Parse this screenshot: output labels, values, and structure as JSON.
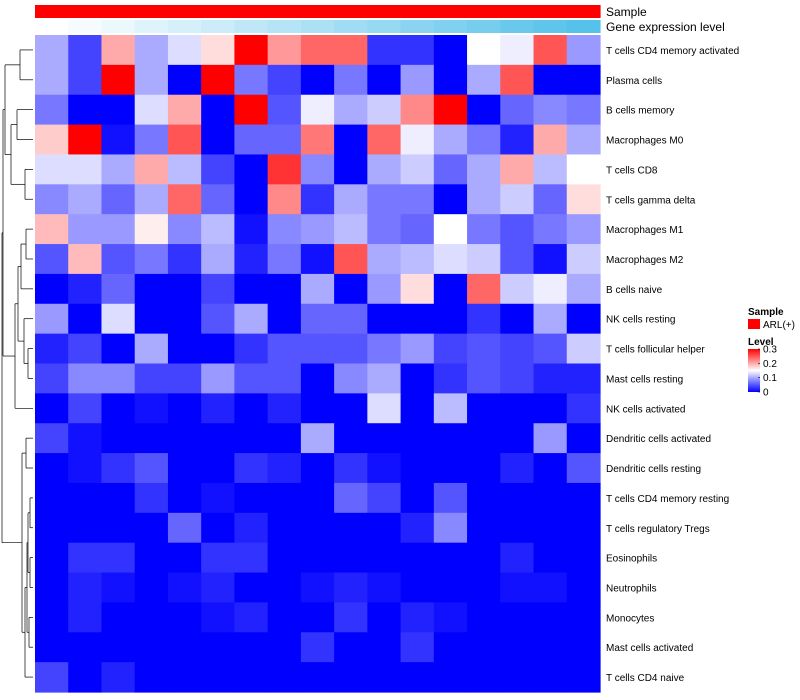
{
  "chart_data": {
    "type": "heatmap",
    "title": "",
    "annotation_tracks": [
      {
        "name": "Sample",
        "type": "categorical",
        "values": [
          "ARL(+)",
          "ARL(+)",
          "ARL(+)",
          "ARL(+)",
          "ARL(+)",
          "ARL(+)",
          "ARL(+)",
          "ARL(+)",
          "ARL(+)",
          "ARL(+)",
          "ARL(+)",
          "ARL(+)",
          "ARL(+)",
          "ARL(+)",
          "ARL(+)",
          "ARL(+)",
          "ARL(+)"
        ]
      },
      {
        "name": "Gene expression level",
        "type": "continuous",
        "values": [
          0.0,
          0.06,
          0.12,
          0.19,
          0.25,
          0.31,
          0.38,
          0.44,
          0.5,
          0.56,
          0.62,
          0.69,
          0.75,
          0.81,
          0.88,
          0.94,
          1.0
        ],
        "color_low": "#ffffff",
        "color_high": "#56c1ea"
      }
    ],
    "rows": [
      "T cells CD4 memory activated",
      "Plasma cells",
      "B cells memory",
      "Macrophages M0",
      "T cells CD8",
      "T cells gamma delta",
      "Macrophages M1",
      "Macrophages M2",
      "B cells naive",
      "NK cells resting",
      "T cells follicular helper",
      "Mast cells resting",
      "NK cells activated",
      "Dendritic cells activated",
      "Dendritic cells resting",
      "T cells CD4 memory resting",
      "T cells regulatory  Tregs",
      "Eosinophils",
      "Neutrophils",
      "Monocytes",
      "Mast cells activated",
      "T cells CD4 naive"
    ],
    "n_columns": 17,
    "values": [
      [
        0.1,
        0.04,
        0.2,
        0.1,
        0.13,
        0.17,
        0.3,
        0.21,
        0.24,
        0.24,
        0.03,
        0.03,
        0.0,
        0.15,
        0.14,
        0.25,
        0.09
      ],
      [
        0.1,
        0.04,
        0.3,
        0.1,
        0.0,
        0.3,
        0.07,
        0.04,
        0.0,
        0.07,
        0.0,
        0.09,
        0.0,
        0.1,
        0.25,
        0.0,
        0.0
      ],
      [
        0.07,
        0.0,
        0.0,
        0.13,
        0.2,
        0.0,
        0.3,
        0.05,
        0.14,
        0.1,
        0.12,
        0.22,
        0.3,
        0.0,
        0.06,
        0.08,
        0.07
      ],
      [
        0.18,
        0.3,
        0.01,
        0.07,
        0.25,
        0.0,
        0.06,
        0.06,
        0.23,
        0.0,
        0.24,
        0.14,
        0.1,
        0.07,
        0.02,
        0.2,
        0.1
      ],
      [
        0.13,
        0.13,
        0.1,
        0.2,
        0.11,
        0.04,
        0.0,
        0.27,
        0.08,
        0.0,
        0.1,
        0.12,
        0.06,
        0.1,
        0.2,
        0.11,
        0.15
      ],
      [
        0.08,
        0.1,
        0.06,
        0.1,
        0.24,
        0.06,
        0.0,
        0.22,
        0.03,
        0.1,
        0.07,
        0.07,
        0.0,
        0.1,
        0.12,
        0.06,
        0.17
      ],
      [
        0.19,
        0.09,
        0.09,
        0.16,
        0.08,
        0.11,
        0.01,
        0.08,
        0.09,
        0.11,
        0.07,
        0.06,
        0.15,
        0.07,
        0.05,
        0.07,
        0.09
      ],
      [
        0.05,
        0.19,
        0.05,
        0.07,
        0.03,
        0.1,
        0.02,
        0.07,
        0.01,
        0.25,
        0.1,
        0.11,
        0.13,
        0.12,
        0.05,
        0.01,
        0.12
      ],
      [
        0.0,
        0.02,
        0.06,
        0.0,
        0.0,
        0.04,
        0.0,
        0.0,
        0.1,
        0.0,
        0.09,
        0.17,
        0.0,
        0.24,
        0.12,
        0.14,
        0.1
      ],
      [
        0.09,
        0.0,
        0.13,
        0.0,
        0.0,
        0.05,
        0.1,
        0.0,
        0.06,
        0.06,
        0.0,
        0.0,
        0.0,
        0.03,
        0.0,
        0.1,
        0.0
      ],
      [
        0.02,
        0.04,
        0.0,
        0.1,
        0.0,
        0.0,
        0.03,
        0.05,
        0.05,
        0.05,
        0.07,
        0.09,
        0.04,
        0.05,
        0.04,
        0.05,
        0.12
      ],
      [
        0.04,
        0.08,
        0.08,
        0.04,
        0.04,
        0.09,
        0.05,
        0.05,
        0.0,
        0.08,
        0.1,
        0.0,
        0.03,
        0.05,
        0.04,
        0.02,
        0.02
      ],
      [
        0.0,
        0.04,
        0.0,
        0.01,
        0.0,
        0.02,
        0.0,
        0.02,
        0.0,
        0.0,
        0.13,
        0.0,
        0.11,
        0.0,
        0.0,
        0.0,
        0.03
      ],
      [
        0.04,
        0.01,
        0.0,
        0.0,
        0.0,
        0.0,
        0.0,
        0.0,
        0.1,
        0.0,
        0.0,
        0.0,
        0.0,
        0.0,
        0.0,
        0.09,
        0.0
      ],
      [
        0.0,
        0.01,
        0.03,
        0.05,
        0.0,
        0.0,
        0.03,
        0.02,
        0.0,
        0.03,
        0.01,
        0.0,
        0.0,
        0.0,
        0.02,
        0.0,
        0.05
      ],
      [
        0.0,
        0.0,
        0.0,
        0.03,
        0.0,
        0.01,
        0.0,
        0.0,
        0.0,
        0.06,
        0.04,
        0.0,
        0.05,
        0.0,
        0.0,
        0.0,
        0.0
      ],
      [
        0.0,
        0.0,
        0.0,
        0.0,
        0.06,
        0.0,
        0.02,
        0.0,
        0.0,
        0.0,
        0.0,
        0.02,
        0.08,
        0.0,
        0.0,
        0.0,
        0.0
      ],
      [
        0.0,
        0.03,
        0.03,
        0.0,
        0.0,
        0.03,
        0.03,
        0.0,
        0.0,
        0.0,
        0.0,
        0.0,
        0.0,
        0.0,
        0.02,
        0.0,
        0.0
      ],
      [
        0.0,
        0.02,
        0.01,
        0.0,
        0.01,
        0.02,
        0.0,
        0.0,
        0.01,
        0.02,
        0.01,
        0.0,
        0.0,
        0.0,
        0.01,
        0.01,
        0.0
      ],
      [
        0.0,
        0.02,
        0.0,
        0.0,
        0.0,
        0.01,
        0.02,
        0.0,
        0.0,
        0.03,
        0.0,
        0.02,
        0.01,
        0.0,
        0.0,
        0.0,
        0.0
      ],
      [
        0.0,
        0.0,
        0.0,
        0.0,
        0.0,
        0.0,
        0.0,
        0.0,
        0.03,
        0.0,
        0.0,
        0.03,
        0.0,
        0.0,
        0.0,
        0.0,
        0.0
      ],
      [
        0.04,
        0.0,
        0.02,
        0.0,
        0.0,
        0.0,
        0.0,
        0.0,
        0.0,
        0.0,
        0.0,
        0.0,
        0.0,
        0.0,
        0.0,
        0.0,
        0.0
      ]
    ],
    "color_scale": {
      "low": "#0000ff",
      "mid": "#ffffff",
      "high": "#ff0000",
      "min": 0,
      "mid_value": 0.15,
      "max": 0.3
    },
    "legend": {
      "sample_title": "Sample",
      "sample_entries": [
        {
          "label": "ARL(+)",
          "color": "#ff0000"
        }
      ],
      "level_title": "Level",
      "level_ticks": [
        "0.3",
        "0.2",
        "0.1",
        "0"
      ],
      "level_tick_values": [
        0.3,
        0.2,
        0.1,
        0
      ]
    },
    "row_dendrogram": true,
    "legend_position": "right"
  }
}
